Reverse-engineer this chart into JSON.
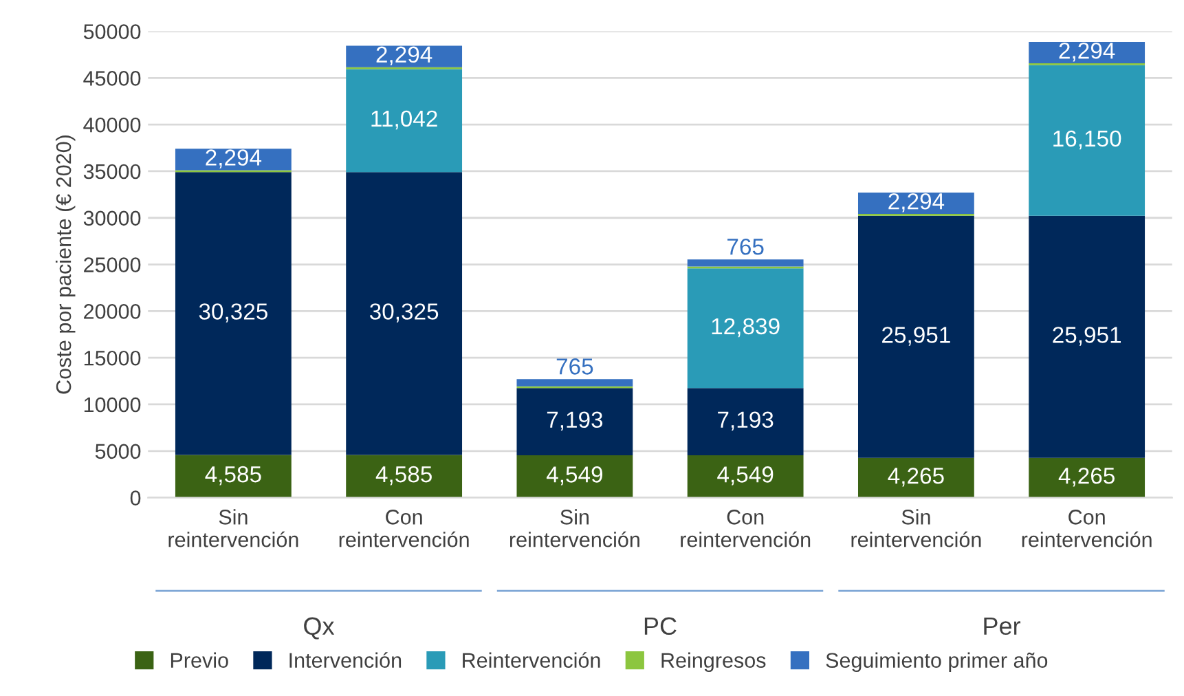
{
  "chart_data": {
    "type": "bar",
    "stacked": true,
    "ylabel": "Coste por paciente (€ 2020)",
    "categories": [
      "Sin\nreintervención",
      "Con\nreintervención",
      "Sin\nreintervención",
      "Con\nreintervención",
      "Sin\nreintervención",
      "Con\nreintervención"
    ],
    "annotations": [
      "Qx",
      "PC",
      "Per"
    ],
    "series": [
      {
        "name": "Previo",
        "color": "#3b6314",
        "values": [
          4585,
          4585,
          4549,
          4549,
          4265,
          4265
        ],
        "value_labels": [
          "4,585",
          "4,585",
          "4,549",
          "4,549",
          "4,265",
          "4,265"
        ]
      },
      {
        "name": "Intervención",
        "color": "#00285a",
        "values": [
          30325,
          30325,
          7193,
          7193,
          25951,
          25951
        ],
        "value_labels": [
          "30,325",
          "30,325",
          "7,193",
          "7,193",
          "25,951",
          "25,951"
        ]
      },
      {
        "name": "Reintervención",
        "color": "#2a9bb7",
        "values": [
          null,
          11042,
          null,
          12839,
          null,
          16150
        ],
        "value_labels": [
          null,
          "11,042",
          null,
          "12,839",
          null,
          "16,150"
        ]
      },
      {
        "name": "Reingresos",
        "color": "#8cc63f",
        "values": [
          200,
          200,
          200,
          200,
          200,
          200
        ]
      },
      {
        "name": "Seguimiento primer año",
        "color": "#3570c0",
        "values": [
          2294,
          2294,
          765,
          765,
          2294,
          2294
        ],
        "value_labels": [
          "2,294",
          "2,294",
          "765",
          "765",
          "2,294",
          "2,294"
        ]
      }
    ],
    "ylim": [
      0,
      50000
    ],
    "yticks": [
      0,
      5000,
      10000,
      15000,
      20000,
      25000,
      30000,
      35000,
      40000,
      45000,
      50000
    ],
    "grid": "y",
    "legend": "bottom"
  }
}
